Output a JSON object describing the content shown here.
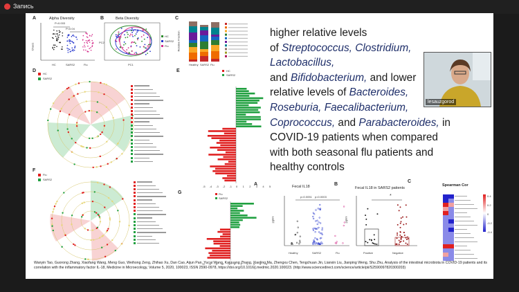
{
  "recorder": {
    "label": "Запись"
  },
  "presenter": {
    "name": "lesauzgorod"
  },
  "slide": {
    "text": {
      "l1": "higher relative levels",
      "l2_of": "of ",
      "l2_sp": "Streptococcus, Clostridium,",
      "l3_sp": "Lactobacillus,",
      "l4_and": "and ",
      "l4_sp": "Bifidobacterium,",
      "l4_rest": " and lower",
      "l5_pre": "relative levels of ",
      "l5_sp": "Bacteroides,",
      "l6_sp": "Roseburia, Faecalibacterium,",
      "l7_sp": "Coprococcus,",
      "l7_and": " and ",
      "l7_sp2": "Parabacteroides,",
      "l7_rest": " in",
      "l8": "COVID-19 patients when compared",
      "l9": "with both seasonal flu patients and",
      "l10": "healthy controls"
    },
    "citation": "Wanyin Tao, Guorong Zhang, Xiaofang Wang, Meng Guo, Weihong Zeng, Zhihao Xu, Dan Cao, Aijun Pan, Yucai Wang, Kaiguang Zhang, Xiaoling Ma, Zhengxu Chen, Tengchuan Jin, Lianxin Liu, Jianping Weng, Shu Zhu, Analysis of the intestinal microbiota in COVID-19 patients and its correlation with the inflammatory factor IL-18, Medicine in Microecology, Volume 5, 2020, 100023, ISSN 2590-0978, https://doi.org/10.1016/j.medmic.2020.100023. (http://www.sciencedirect.com/science/article/pii/S2590097820300203)",
    "figure": {
      "A": {
        "letter": "A",
        "title": "Alpha Diversity",
        "ylabel": "Chao1",
        "cats": [
          "HC",
          "SARS2",
          "Flu"
        ],
        "p1": "P=0.003",
        "p2": "P<0.04"
      },
      "B": {
        "letter": "B",
        "title": "Beta Diversity",
        "xlabel": "PC1",
        "ylabel": "PC2",
        "legend": [
          "HC",
          "SARS2",
          "Flu"
        ]
      },
      "C": {
        "letter": "C",
        "ylabel": "Relative Fraction",
        "cats": [
          "Healthy",
          "SARS2",
          "Flu"
        ]
      },
      "D": {
        "letter": "D",
        "legend": [
          "HC",
          "SARS2"
        ]
      },
      "E": {
        "letter": "E",
        "legend": [
          "HC",
          "SARS2"
        ],
        "ticks": [
          "-5",
          "-4",
          "-3",
          "-2",
          "-1",
          "0",
          "1",
          "2",
          "3",
          "4",
          "5"
        ]
      },
      "F": {
        "letter": "F",
        "legend": [
          "Flu",
          "SARS2"
        ]
      },
      "G": {
        "letter": "G",
        "legend": [
          "Flu",
          "SARS2"
        ],
        "ticks": [
          "-5",
          "-4",
          "-3",
          "-2",
          "-1",
          "0",
          "1",
          "2",
          "3",
          "4",
          "5"
        ]
      },
      "IL18A": {
        "letter": "A",
        "title": "Fecal IL18",
        "ylabel": "pg/ml",
        "p1": "p=0.0051",
        "p2": "p=0.0003",
        "cats": [
          "Healthy",
          "SARS2",
          "Flu"
        ]
      },
      "IL18B": {
        "letter": "B",
        "title": "Fecal IL18 in SARS2 patients",
        "ylabel": "pg/ml",
        "sig": "*",
        "cats": [
          "Positive",
          "Negative"
        ]
      },
      "CorrC": {
        "letter": "C",
        "title": "Spearman Cor",
        "legend_ticks": [
          "0.4",
          "0.2",
          "0",
          "-0.2",
          "-0.4"
        ]
      }
    },
    "chart_data": [
      {
        "type": "scatter",
        "title": "Fecal IL18",
        "ylabel": "pg/ml",
        "categories": [
          "Healthy",
          "SARS2",
          "Flu"
        ]
      },
      {
        "type": "scatter",
        "title": "Fecal IL18 in SARS2 patients",
        "ylabel": "pg/ml",
        "categories": [
          "Positive",
          "Negative"
        ]
      }
    ]
  }
}
